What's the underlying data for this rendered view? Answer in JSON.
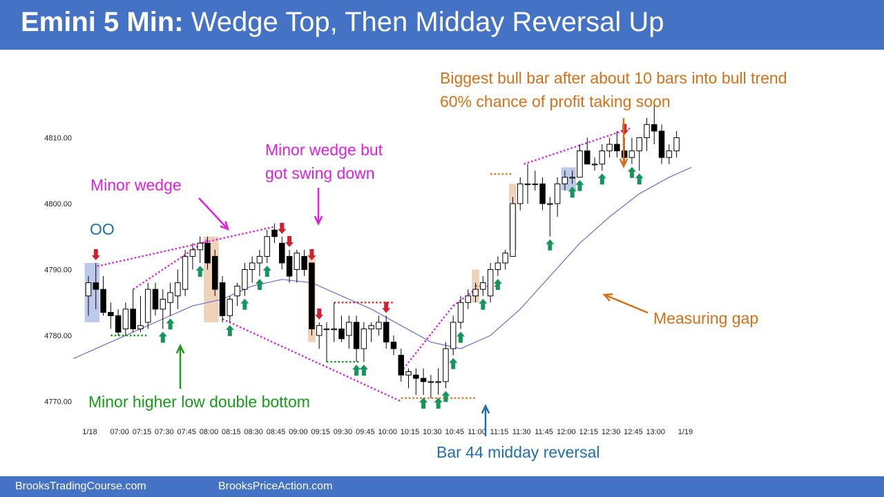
{
  "header": {
    "title_bold": "Emini 5 Min:",
    "title_rest": "Wedge Top, Then Midday Reversal Up"
  },
  "footer": {
    "left_link": "BrooksTradingCourse.com",
    "right_link": "BrooksPriceAction.com"
  },
  "colors": {
    "header_bg": "#4472c4",
    "magenta": "#e020e0",
    "orange": "#d8701a",
    "green": "#1a9a1a",
    "blue_text": "#1f6fb4",
    "arrow_green": "#15955a",
    "arrow_red": "#d02030",
    "ema": "#6b6bd6",
    "red_dotted": "#e03030",
    "highlight_orange": "#e3b48c",
    "highlight_blue": "#8fa5dd"
  },
  "chart_data": {
    "type": "candlestick",
    "y_ticks": [
      4770,
      4780,
      4790,
      4800,
      4810
    ],
    "y_tick_labels": [
      "4770.00",
      "4780.00",
      "4790.00",
      "4800.00",
      "4810.00"
    ],
    "ylim": [
      4765,
      4819
    ],
    "x_tick_labels": [
      {
        "bar": 0,
        "label": "1/18"
      },
      {
        "bar": 4,
        "label": "07:00"
      },
      {
        "bar": 7,
        "label": "07:15"
      },
      {
        "bar": 10,
        "label": "07:30"
      },
      {
        "bar": 13,
        "label": "07:45"
      },
      {
        "bar": 16,
        "label": "08:00"
      },
      {
        "bar": 19,
        "label": "08:15"
      },
      {
        "bar": 22,
        "label": "08:30"
      },
      {
        "bar": 25,
        "label": "08:45"
      },
      {
        "bar": 28,
        "label": "09:00"
      },
      {
        "bar": 31,
        "label": "09:15"
      },
      {
        "bar": 34,
        "label": "09:30"
      },
      {
        "bar": 37,
        "label": "09:45"
      },
      {
        "bar": 40,
        "label": "10:00"
      },
      {
        "bar": 43,
        "label": "10:15"
      },
      {
        "bar": 46,
        "label": "10:30"
      },
      {
        "bar": 49,
        "label": "10:45"
      },
      {
        "bar": 52,
        "label": "11:00"
      },
      {
        "bar": 55,
        "label": "11:15"
      },
      {
        "bar": 58,
        "label": "11:30"
      },
      {
        "bar": 61,
        "label": "11:45"
      },
      {
        "bar": 64,
        "label": "12:00"
      },
      {
        "bar": 67,
        "label": "12:15"
      },
      {
        "bar": 70,
        "label": "12:30"
      },
      {
        "bar": 73,
        "label": "12:45"
      },
      {
        "bar": 76,
        "label": "13:00"
      },
      {
        "bar": 80,
        "label": "1/19"
      }
    ],
    "bars": [
      {
        "o": 4786,
        "h": 4789,
        "l": 4783,
        "c": 4788
      },
      {
        "o": 4788,
        "h": 4791,
        "l": 4784,
        "c": 4787
      },
      {
        "o": 4787,
        "h": 4789,
        "l": 4783,
        "c": 4783.5
      },
      {
        "o": 4783.5,
        "h": 4785,
        "l": 4781,
        "c": 4783
      },
      {
        "o": 4783,
        "h": 4784,
        "l": 4780,
        "c": 4780.5
      },
      {
        "o": 4781,
        "h": 4785,
        "l": 4780,
        "c": 4784
      },
      {
        "o": 4784,
        "h": 4787,
        "l": 4780.5,
        "c": 4781
      },
      {
        "o": 4781,
        "h": 4786,
        "l": 4780.5,
        "c": 4781.5
      },
      {
        "o": 4782,
        "h": 4788,
        "l": 4781,
        "c": 4787
      },
      {
        "o": 4787,
        "h": 4788,
        "l": 4783,
        "c": 4784
      },
      {
        "o": 4784,
        "h": 4787,
        "l": 4781,
        "c": 4785.5
      },
      {
        "o": 4785,
        "h": 4788,
        "l": 4783,
        "c": 4786.5
      },
      {
        "o": 4786,
        "h": 4790,
        "l": 4784,
        "c": 4788
      },
      {
        "o": 4787,
        "h": 4793,
        "l": 4786,
        "c": 4792
      },
      {
        "o": 4792,
        "h": 4794,
        "l": 4790,
        "c": 4793
      },
      {
        "o": 4793,
        "h": 4795,
        "l": 4791,
        "c": 4794
      },
      {
        "o": 4794,
        "h": 4795,
        "l": 4790,
        "c": 4791
      },
      {
        "o": 4792,
        "h": 4793,
        "l": 4786,
        "c": 4787
      },
      {
        "o": 4788,
        "h": 4789,
        "l": 4782,
        "c": 4783
      },
      {
        "o": 4783,
        "h": 4786,
        "l": 4782,
        "c": 4785.5
      },
      {
        "o": 4786,
        "h": 4788,
        "l": 4784.5,
        "c": 4787.5
      },
      {
        "o": 4787,
        "h": 4791,
        "l": 4786,
        "c": 4790
      },
      {
        "o": 4790,
        "h": 4792,
        "l": 4788,
        "c": 4791
      },
      {
        "o": 4791,
        "h": 4793,
        "l": 4789,
        "c": 4792
      },
      {
        "o": 4792,
        "h": 4796,
        "l": 4791,
        "c": 4795
      },
      {
        "o": 4796,
        "h": 4797,
        "l": 4794,
        "c": 4795
      },
      {
        "o": 4794,
        "h": 4795,
        "l": 4790,
        "c": 4791
      },
      {
        "o": 4792,
        "h": 4793,
        "l": 4788,
        "c": 4789
      },
      {
        "o": 4790,
        "h": 4793,
        "l": 4788,
        "c": 4792.5
      },
      {
        "o": 4792,
        "h": 4793,
        "l": 4789,
        "c": 4790
      },
      {
        "o": 4791,
        "h": 4791,
        "l": 4780,
        "c": 4781
      },
      {
        "o": 4780,
        "h": 4782,
        "l": 4778,
        "c": 4781.5
      },
      {
        "o": 4781,
        "h": 4782,
        "l": 4776,
        "c": 4781
      },
      {
        "o": 4781,
        "h": 4785,
        "l": 4779,
        "c": 4781
      },
      {
        "o": 4781,
        "h": 4783,
        "l": 4779,
        "c": 4779.5
      },
      {
        "o": 4780,
        "h": 4783,
        "l": 4778,
        "c": 4782
      },
      {
        "o": 4782,
        "h": 4783,
        "l": 4776,
        "c": 4778
      },
      {
        "o": 4778,
        "h": 4782,
        "l": 4776,
        "c": 4781
      },
      {
        "o": 4781,
        "h": 4782,
        "l": 4779,
        "c": 4781.5
      },
      {
        "o": 4781,
        "h": 4783,
        "l": 4780,
        "c": 4782
      },
      {
        "o": 4782,
        "h": 4783,
        "l": 4778,
        "c": 4779
      },
      {
        "o": 4779,
        "h": 4780,
        "l": 4777,
        "c": 4778
      },
      {
        "o": 4777,
        "h": 4778,
        "l": 4773,
        "c": 4774
      },
      {
        "o": 4774,
        "h": 4775,
        "l": 4772,
        "c": 4774.5
      },
      {
        "o": 4774,
        "h": 4775,
        "l": 4771,
        "c": 4773.5
      },
      {
        "o": 4773.5,
        "h": 4775,
        "l": 4771,
        "c": 4773
      },
      {
        "o": 4773,
        "h": 4774,
        "l": 4770.5,
        "c": 4773
      },
      {
        "o": 4773,
        "h": 4775,
        "l": 4771,
        "c": 4773
      },
      {
        "o": 4773,
        "h": 4779,
        "l": 4772,
        "c": 4778
      },
      {
        "o": 4778,
        "h": 4783,
        "l": 4777,
        "c": 4782
      },
      {
        "o": 4782,
        "h": 4786,
        "l": 4781,
        "c": 4785
      },
      {
        "o": 4785,
        "h": 4787,
        "l": 4784,
        "c": 4786
      },
      {
        "o": 4786,
        "h": 4788,
        "l": 4785,
        "c": 4787
      },
      {
        "o": 4787,
        "h": 4789,
        "l": 4786,
        "c": 4788
      },
      {
        "o": 4786,
        "h": 4791,
        "l": 4785,
        "c": 4790
      },
      {
        "o": 4790,
        "h": 4792,
        "l": 4789,
        "c": 4791
      },
      {
        "o": 4791,
        "h": 4793,
        "l": 4790,
        "c": 4792.5
      },
      {
        "o": 4792,
        "h": 4801,
        "l": 4792,
        "c": 4800
      },
      {
        "o": 4800,
        "h": 4804,
        "l": 4799,
        "c": 4803
      },
      {
        "o": 4803,
        "h": 4806,
        "l": 4800,
        "c": 4803
      },
      {
        "o": 4803,
        "h": 4805,
        "l": 4802,
        "c": 4803
      },
      {
        "o": 4803,
        "h": 4804,
        "l": 4799,
        "c": 4800
      },
      {
        "o": 4800,
        "h": 4801,
        "l": 4795,
        "c": 4800
      },
      {
        "o": 4800,
        "h": 4804,
        "l": 4798,
        "c": 4803
      },
      {
        "o": 4803,
        "h": 4805,
        "l": 4802,
        "c": 4804
      },
      {
        "o": 4804,
        "h": 4805,
        "l": 4803,
        "c": 4804
      },
      {
        "o": 4804,
        "h": 4809,
        "l": 4804,
        "c": 4808
      },
      {
        "o": 4808,
        "h": 4810,
        "l": 4806,
        "c": 4806
      },
      {
        "o": 4806,
        "h": 4807,
        "l": 4805,
        "c": 4806
      },
      {
        "o": 4806,
        "h": 4809,
        "l": 4805,
        "c": 4808
      },
      {
        "o": 4808,
        "h": 4810,
        "l": 4807,
        "c": 4809
      },
      {
        "o": 4809,
        "h": 4811,
        "l": 4807,
        "c": 4808
      },
      {
        "o": 4808,
        "h": 4810,
        "l": 4806,
        "c": 4807
      },
      {
        "o": 4807,
        "h": 4810,
        "l": 4806,
        "c": 4808
      },
      {
        "o": 4808,
        "h": 4810,
        "l": 4805,
        "c": 4810
      },
      {
        "o": 4810,
        "h": 4813,
        "l": 4808,
        "c": 4812
      },
      {
        "o": 4812,
        "h": 4815,
        "l": 4809,
        "c": 4811
      },
      {
        "o": 4811,
        "h": 4812,
        "l": 4806,
        "c": 4807
      },
      {
        "o": 4807,
        "h": 4809,
        "l": 4806,
        "c": 4808
      },
      {
        "o": 4808,
        "h": 4811,
        "l": 4807,
        "c": 4810
      }
    ],
    "ema": [
      {
        "bar": -2,
        "v": 4776.5
      },
      {
        "bar": 2,
        "v": 4778.5
      },
      {
        "bar": 6,
        "v": 4780.5
      },
      {
        "bar": 10,
        "v": 4782.5
      },
      {
        "bar": 14,
        "v": 4784.5
      },
      {
        "bar": 18,
        "v": 4785.5
      },
      {
        "bar": 22,
        "v": 4787.5
      },
      {
        "bar": 26,
        "v": 4788.5
      },
      {
        "bar": 30,
        "v": 4788
      },
      {
        "bar": 34,
        "v": 4786
      },
      {
        "bar": 38,
        "v": 4784
      },
      {
        "bar": 42,
        "v": 4781.5
      },
      {
        "bar": 46,
        "v": 4779
      },
      {
        "bar": 50,
        "v": 4778
      },
      {
        "bar": 54,
        "v": 4780
      },
      {
        "bar": 58,
        "v": 4784
      },
      {
        "bar": 62,
        "v": 4789
      },
      {
        "bar": 66,
        "v": 4794
      },
      {
        "bar": 70,
        "v": 4798
      },
      {
        "bar": 74,
        "v": 4801.5
      },
      {
        "bar": 78,
        "v": 4804
      },
      {
        "bar": 81,
        "v": 4805.5
      }
    ],
    "highlights": [
      {
        "from": -0.5,
        "to": 1.5,
        "lo": 4782,
        "hi": 4791,
        "color": "blue"
      },
      {
        "from": 15.5,
        "to": 17.5,
        "lo": 4782,
        "hi": 4795,
        "color": "orange"
      },
      {
        "from": 29.5,
        "to": 30.5,
        "lo": 4779,
        "hi": 4792,
        "color": "orange"
      },
      {
        "from": 51.5,
        "to": 52.5,
        "lo": 4785,
        "hi": 4790,
        "color": "orange"
      },
      {
        "from": 56.5,
        "to": 57.5,
        "lo": 4793,
        "hi": 4803,
        "color": "orange"
      },
      {
        "from": 63.5,
        "to": 65.5,
        "lo": 4802,
        "hi": 4805.5,
        "color": "blue"
      }
    ],
    "dotted_lines": [
      {
        "x1": 1.2,
        "y1": 4790.5,
        "x2": 25,
        "y2": 4796.5,
        "color": "magenta"
      },
      {
        "x1": 6,
        "y1": 4787,
        "x2": 16,
        "y2": 4794.5,
        "color": "magenta"
      },
      {
        "x1": 18,
        "y1": 4782.5,
        "x2": 42,
        "y2": 4770,
        "color": "magenta"
      },
      {
        "x1": 42,
        "y1": 4774.5,
        "x2": 49,
        "y2": 4784.5,
        "color": "magenta"
      },
      {
        "x1": 49,
        "y1": 4784.5,
        "x2": 52,
        "y2": 4787,
        "color": "magenta"
      },
      {
        "x1": 58.5,
        "y1": 4806,
        "x2": 73,
        "y2": 4811.5,
        "color": "magenta"
      },
      {
        "x1": 3,
        "y1": 4780,
        "x2": 8,
        "y2": 4780,
        "color": "green"
      },
      {
        "x1": 32,
        "y1": 4776,
        "x2": 36.5,
        "y2": 4776,
        "color": "green"
      },
      {
        "x1": 33,
        "y1": 4785,
        "x2": 41,
        "y2": 4785,
        "color": "red"
      },
      {
        "x1": 42,
        "y1": 4770.5,
        "x2": 52,
        "y2": 4770.5,
        "color": "orange"
      },
      {
        "x1": 54,
        "y1": 4804.5,
        "x2": 57,
        "y2": 4804.5,
        "color": "orange"
      },
      {
        "x1": 52,
        "y1": 4787.5,
        "x2": 55,
        "y2": 4787.5,
        "color": "orange"
      }
    ],
    "signal_arrows": [
      {
        "bar": 1,
        "dir": "down",
        "color": "red"
      },
      {
        "bar": 10,
        "dir": "up",
        "color": "green"
      },
      {
        "bar": 11,
        "dir": "up",
        "color": "green"
      },
      {
        "bar": 15,
        "dir": "up",
        "color": "green"
      },
      {
        "bar": 19,
        "dir": "up",
        "color": "green"
      },
      {
        "bar": 21,
        "dir": "up",
        "color": "green"
      },
      {
        "bar": 23,
        "dir": "up",
        "color": "green"
      },
      {
        "bar": 24,
        "dir": "up",
        "color": "green"
      },
      {
        "bar": 26,
        "dir": "down",
        "color": "red"
      },
      {
        "bar": 27,
        "dir": "down",
        "color": "red"
      },
      {
        "bar": 30,
        "dir": "down",
        "color": "red"
      },
      {
        "bar": 31,
        "dir": "down",
        "color": "red"
      },
      {
        "bar": 36,
        "dir": "up",
        "color": "green"
      },
      {
        "bar": 37,
        "dir": "up",
        "color": "green"
      },
      {
        "bar": 40,
        "dir": "down",
        "color": "red"
      },
      {
        "bar": 45,
        "dir": "up",
        "color": "green"
      },
      {
        "bar": 47,
        "dir": "up",
        "color": "green"
      },
      {
        "bar": 48,
        "dir": "up",
        "color": "green"
      },
      {
        "bar": 49,
        "dir": "up",
        "color": "green"
      },
      {
        "bar": 50,
        "dir": "up",
        "color": "green"
      },
      {
        "bar": 53,
        "dir": "up",
        "color": "green"
      },
      {
        "bar": 55,
        "dir": "up",
        "color": "green"
      },
      {
        "bar": 62,
        "dir": "up",
        "color": "green"
      },
      {
        "bar": 65,
        "dir": "up",
        "color": "green"
      },
      {
        "bar": 66,
        "dir": "up",
        "color": "green"
      },
      {
        "bar": 69,
        "dir": "up",
        "color": "green"
      },
      {
        "bar": 72,
        "dir": "down",
        "color": "red"
      },
      {
        "bar": 73,
        "dir": "up",
        "color": "green"
      },
      {
        "bar": 74,
        "dir": "up",
        "color": "green"
      }
    ],
    "annotations": [
      {
        "id": "oo",
        "text": "OO",
        "color": "blue"
      },
      {
        "id": "minor-wedge",
        "text": "Minor wedge",
        "color": "magenta"
      },
      {
        "id": "minor-wedge-swing-1",
        "text": "Minor wedge but",
        "color": "magenta"
      },
      {
        "id": "minor-wedge-swing-2",
        "text": "got swing down",
        "color": "magenta"
      },
      {
        "id": "biggest-bull-1",
        "text": "Biggest bull bar after about 10 bars into bull trend",
        "color": "orange"
      },
      {
        "id": "biggest-bull-2",
        "text": "60% chance of profit taking soon",
        "color": "orange"
      },
      {
        "id": "measuring-gap",
        "text": "Measuring gap",
        "color": "orange"
      },
      {
        "id": "higher-low",
        "text": "Minor higher low double bottom",
        "color": "green"
      },
      {
        "id": "midday-reversal",
        "text": "Bar 44 midday reversal",
        "color": "blue"
      }
    ]
  }
}
